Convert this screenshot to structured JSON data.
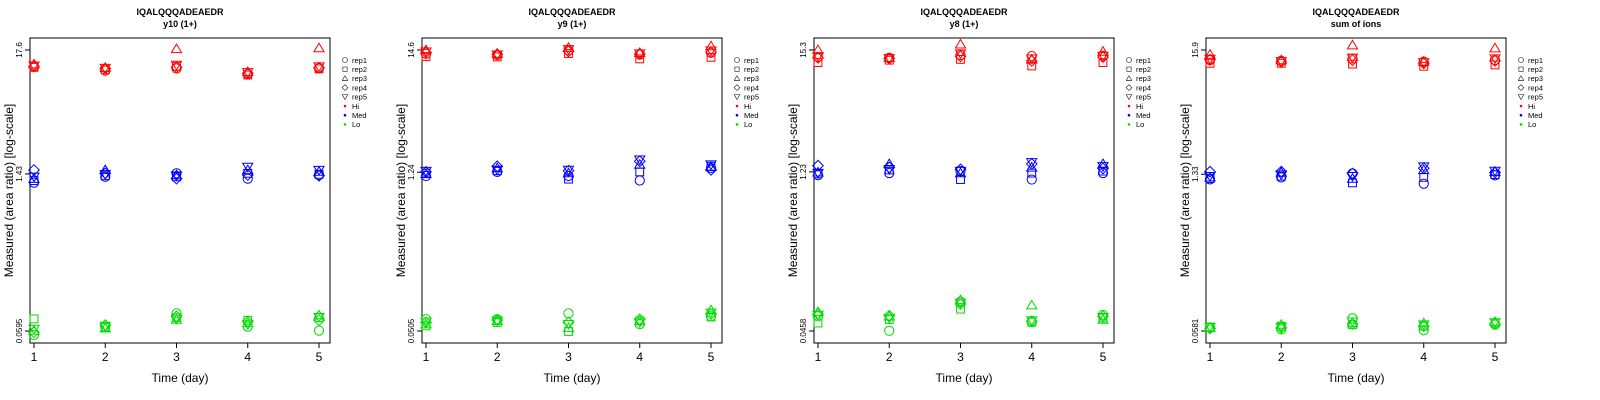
{
  "chart_data": [
    {
      "type": "scatter",
      "title": "IQALQQQADEAEDR",
      "subtitle": "y10 (1+)",
      "xlabel": "Time (day)",
      "ylabel": "Measured (area ratio) [log-scale]",
      "log_y": true,
      "x_ticks": [
        1,
        2,
        3,
        4,
        5
      ],
      "y_ticks": [
        "0.0595",
        "1.43",
        "17.6"
      ],
      "y_tick_values": [
        0.0595,
        1.43,
        17.6
      ],
      "ylim": [
        0.0595,
        17.6
      ],
      "grid": false,
      "legend_position": "right",
      "series": [
        {
          "group": "Hi",
          "rep": "rep1",
          "values": [
            12.5,
            11.6,
            12.1,
            10.8,
            12.2
          ]
        },
        {
          "group": "Hi",
          "rep": "rep2",
          "values": [
            12.4,
            11.8,
            12.6,
            10.6,
            12.0
          ]
        },
        {
          "group": "Hi",
          "rep": "rep3",
          "values": [
            13.2,
            12.3,
            18.0,
            11.3,
            18.3
          ]
        },
        {
          "group": "Hi",
          "rep": "rep4",
          "values": [
            12.6,
            12.1,
            12.4,
            11.0,
            12.3
          ]
        },
        {
          "group": "Hi",
          "rep": "rep5",
          "values": [
            12.8,
            12.2,
            13.0,
            11.2,
            12.6
          ]
        },
        {
          "group": "Med",
          "rep": "rep1",
          "values": [
            1.2,
            1.35,
            1.45,
            1.3,
            1.4
          ]
        },
        {
          "group": "Med",
          "rep": "rep2",
          "values": [
            1.25,
            1.38,
            1.35,
            1.45,
            1.42
          ]
        },
        {
          "group": "Med",
          "rep": "rep3",
          "values": [
            1.3,
            1.55,
            1.4,
            1.55,
            1.5
          ]
        },
        {
          "group": "Med",
          "rep": "rep4",
          "values": [
            1.55,
            1.45,
            1.3,
            1.4,
            1.38
          ]
        },
        {
          "group": "Med",
          "rep": "rep5",
          "values": [
            1.35,
            1.42,
            1.38,
            1.65,
            1.55
          ]
        },
        {
          "group": "Lo",
          "rep": "rep1",
          "values": [
            0.055,
            0.065,
            0.085,
            0.065,
            0.06
          ]
        },
        {
          "group": "Lo",
          "rep": "rep2",
          "values": [
            0.076,
            0.064,
            0.078,
            0.074,
            0.078
          ]
        },
        {
          "group": "Lo",
          "rep": "rep3",
          "values": [
            0.06,
            0.063,
            0.075,
            0.07,
            0.082
          ]
        },
        {
          "group": "Lo",
          "rep": "rep4",
          "values": [
            0.058,
            0.067,
            0.08,
            0.072,
            0.074
          ]
        },
        {
          "group": "Lo",
          "rep": "rep5",
          "values": [
            0.062,
            0.066,
            0.076,
            0.068,
            0.079
          ]
        }
      ]
    },
    {
      "type": "scatter",
      "title": "IQALQQQADEAEDR",
      "subtitle": "y9 (1+)",
      "xlabel": "Time (day)",
      "ylabel": "Measured (area ratio) [log-scale]",
      "log_y": true,
      "x_ticks": [
        1,
        2,
        3,
        4,
        5
      ],
      "y_ticks": [
        "0.0505",
        "1.24",
        "14.6"
      ],
      "y_tick_values": [
        0.0505,
        1.24,
        14.6
      ],
      "ylim": [
        0.0505,
        14.6
      ],
      "grid": false,
      "legend_position": "right",
      "series": [
        {
          "group": "Hi",
          "rep": "rep1",
          "values": [
            13.5,
            13.2,
            14.5,
            13.3,
            13.8
          ]
        },
        {
          "group": "Hi",
          "rep": "rep2",
          "values": [
            12.8,
            12.7,
            13.6,
            12.2,
            12.6
          ]
        },
        {
          "group": "Hi",
          "rep": "rep3",
          "values": [
            14.6,
            13.6,
            15.3,
            13.8,
            15.8
          ]
        },
        {
          "group": "Hi",
          "rep": "rep4",
          "values": [
            13.9,
            13.4,
            14.2,
            13.5,
            14.0
          ]
        },
        {
          "group": "Hi",
          "rep": "rep5",
          "values": [
            14.1,
            13.3,
            14.8,
            13.6,
            14.4
          ]
        },
        {
          "group": "Med",
          "rep": "rep1",
          "values": [
            1.15,
            1.25,
            1.15,
            1.05,
            1.35
          ]
        },
        {
          "group": "Med",
          "rep": "rep2",
          "values": [
            1.22,
            1.28,
            1.08,
            1.25,
            1.4
          ]
        },
        {
          "group": "Med",
          "rep": "rep3",
          "values": [
            1.2,
            1.35,
            1.22,
            1.45,
            1.38
          ]
        },
        {
          "group": "Med",
          "rep": "rep4",
          "values": [
            1.25,
            1.4,
            1.28,
            1.55,
            1.3
          ]
        },
        {
          "group": "Med",
          "rep": "rep5",
          "values": [
            1.27,
            1.3,
            1.3,
            1.6,
            1.45
          ]
        },
        {
          "group": "Lo",
          "rep": "rep1",
          "values": [
            0.064,
            0.064,
            0.072,
            0.058,
            0.068
          ]
        },
        {
          "group": "Lo",
          "rep": "rep2",
          "values": [
            0.056,
            0.06,
            0.05,
            0.062,
            0.067
          ]
        },
        {
          "group": "Lo",
          "rep": "rep3",
          "values": [
            0.058,
            0.062,
            0.054,
            0.062,
            0.077
          ]
        },
        {
          "group": "Lo",
          "rep": "rep4",
          "values": [
            0.06,
            0.063,
            0.06,
            0.064,
            0.071
          ]
        },
        {
          "group": "Lo",
          "rep": "rep5",
          "values": [
            0.061,
            0.062,
            0.058,
            0.06,
            0.073
          ]
        }
      ]
    },
    {
      "type": "scatter",
      "title": "IQALQQQADEAEDR",
      "subtitle": "y8 (1+)",
      "xlabel": "Time (day)",
      "ylabel": "Measured (area ratio) [log-scale]",
      "log_y": true,
      "x_ticks": [
        1,
        2,
        3,
        4,
        5
      ],
      "y_ticks": [
        "0.0458",
        "1.23",
        "15.3"
      ],
      "y_tick_values": [
        0.0458,
        1.23,
        15.3
      ],
      "ylim": [
        0.0458,
        15.3
      ],
      "grid": false,
      "legend_position": "right",
      "series": [
        {
          "group": "Hi",
          "rep": "rep1",
          "values": [
            13.2,
            13.0,
            13.8,
            13.5,
            13.6
          ]
        },
        {
          "group": "Hi",
          "rep": "rep2",
          "values": [
            11.8,
            12.4,
            12.6,
            11.0,
            11.8
          ]
        },
        {
          "group": "Hi",
          "rep": "rep3",
          "values": [
            15.3,
            13.0,
            17.2,
            12.6,
            14.8
          ]
        },
        {
          "group": "Hi",
          "rep": "rep4",
          "values": [
            13.0,
            12.8,
            13.4,
            12.2,
            13.2
          ]
        },
        {
          "group": "Hi",
          "rep": "rep5",
          "values": [
            13.4,
            12.9,
            14.2,
            12.8,
            13.5
          ]
        },
        {
          "group": "Med",
          "rep": "rep1",
          "values": [
            1.15,
            1.2,
            1.25,
            1.05,
            1.2
          ]
        },
        {
          "group": "Med",
          "rep": "rep2",
          "values": [
            1.18,
            1.28,
            1.05,
            1.2,
            1.25
          ]
        },
        {
          "group": "Med",
          "rep": "rep3",
          "values": [
            1.22,
            1.45,
            1.2,
            1.35,
            1.45
          ]
        },
        {
          "group": "Med",
          "rep": "rep4",
          "values": [
            1.4,
            1.35,
            1.3,
            1.45,
            1.32
          ]
        },
        {
          "group": "Med",
          "rep": "rep5",
          "values": [
            1.2,
            1.3,
            1.25,
            1.5,
            1.38
          ]
        },
        {
          "group": "Lo",
          "rep": "rep1",
          "values": [
            0.062,
            0.046,
            0.084,
            0.055,
            0.064
          ]
        },
        {
          "group": "Lo",
          "rep": "rep2",
          "values": [
            0.054,
            0.058,
            0.072,
            0.055,
            0.06
          ]
        },
        {
          "group": "Lo",
          "rep": "rep3",
          "values": [
            0.068,
            0.062,
            0.087,
            0.078,
            0.058
          ]
        },
        {
          "group": "Lo",
          "rep": "rep4",
          "values": [
            0.065,
            0.063,
            0.08,
            0.056,
            0.062
          ]
        },
        {
          "group": "Lo",
          "rep": "rep5",
          "values": [
            0.064,
            0.06,
            0.082,
            0.057,
            0.061
          ]
        }
      ]
    },
    {
      "type": "scatter",
      "title": "IQALQQQADEAEDR",
      "subtitle": "sum of ions",
      "xlabel": "Time (day)",
      "ylabel": "Measured (area ratio) [log-scale]",
      "log_y": true,
      "x_ticks": [
        1,
        2,
        3,
        4,
        5
      ],
      "y_ticks": [
        "0.0581",
        "1.33",
        "15.9"
      ],
      "y_tick_values": [
        0.0581,
        1.33,
        15.9
      ],
      "ylim": [
        0.0581,
        15.9
      ],
      "grid": false,
      "legend_position": "right",
      "series": [
        {
          "group": "Hi",
          "rep": "rep1",
          "values": [
            13.0,
            12.8,
            13.4,
            12.6,
            13.0
          ]
        },
        {
          "group": "Hi",
          "rep": "rep2",
          "values": [
            12.2,
            12.2,
            12.0,
            11.5,
            11.8
          ]
        },
        {
          "group": "Hi",
          "rep": "rep3",
          "values": [
            14.5,
            13.0,
            17.5,
            12.6,
            16.5
          ]
        },
        {
          "group": "Hi",
          "rep": "rep4",
          "values": [
            13.1,
            12.5,
            13.0,
            12.2,
            12.8
          ]
        },
        {
          "group": "Hi",
          "rep": "rep5",
          "values": [
            13.3,
            12.7,
            13.6,
            12.4,
            13.4
          ]
        },
        {
          "group": "Med",
          "rep": "rep1",
          "values": [
            1.2,
            1.25,
            1.35,
            1.1,
            1.3
          ]
        },
        {
          "group": "Med",
          "rep": "rep2",
          "values": [
            1.22,
            1.28,
            1.12,
            1.25,
            1.32
          ]
        },
        {
          "group": "Med",
          "rep": "rep3",
          "values": [
            1.25,
            1.38,
            1.22,
            1.45,
            1.4
          ]
        },
        {
          "group": "Med",
          "rep": "rep4",
          "values": [
            1.4,
            1.4,
            1.35,
            1.5,
            1.38
          ]
        },
        {
          "group": "Med",
          "rep": "rep5",
          "values": [
            1.28,
            1.32,
            1.28,
            1.55,
            1.42
          ]
        },
        {
          "group": "Lo",
          "rep": "rep1",
          "values": [
            0.062,
            0.06,
            0.075,
            0.059,
            0.066
          ]
        },
        {
          "group": "Lo",
          "rep": "rep2",
          "values": [
            0.063,
            0.064,
            0.066,
            0.064,
            0.068
          ]
        },
        {
          "group": "Lo",
          "rep": "rep3",
          "values": [
            0.062,
            0.066,
            0.068,
            0.068,
            0.07
          ]
        },
        {
          "group": "Lo",
          "rep": "rep4",
          "values": [
            0.061,
            0.062,
            0.067,
            0.064,
            0.067
          ]
        },
        {
          "group": "Lo",
          "rep": "rep5",
          "values": [
            0.063,
            0.063,
            0.07,
            0.066,
            0.069
          ]
        }
      ]
    }
  ],
  "legend": {
    "reps": [
      "rep1",
      "rep2",
      "rep3",
      "rep4",
      "rep5"
    ],
    "groups": [
      "Hi",
      "Med",
      "Lo"
    ],
    "rep_shapes": {
      "rep1": "circle",
      "rep2": "square",
      "rep3": "triangle-up",
      "rep4": "diamond",
      "rep5": "triangle-down"
    },
    "group_colors": {
      "Hi": "#ff0000",
      "Med": "#0000ff",
      "Lo": "#00dd00"
    }
  }
}
